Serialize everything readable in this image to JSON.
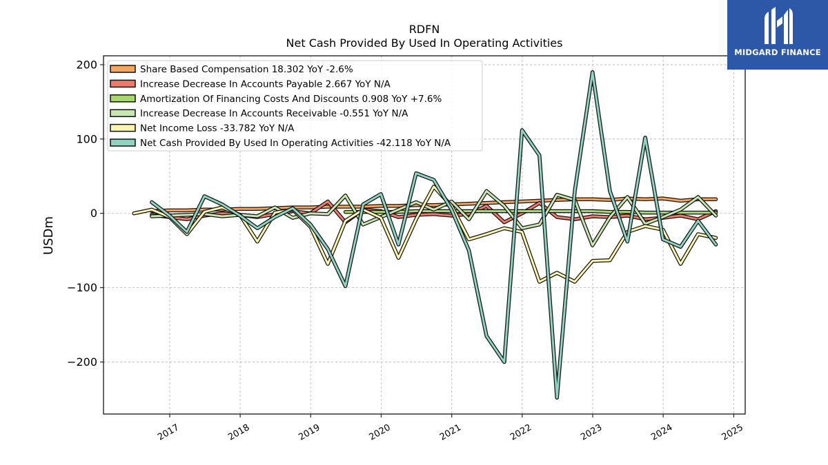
{
  "chart_data": {
    "type": "line",
    "title": "RDFN",
    "subtitle": "Net Cash Provided By Used In Operating Activities",
    "xlabel": "",
    "ylabel": "USDm",
    "xlim": [
      "2016-01-24",
      "2025-03-01"
    ],
    "ylim": [
      -270,
      212
    ],
    "x_ticks": [
      "2017",
      "2018",
      "2019",
      "2020",
      "2021",
      "2022",
      "2023",
      "2024",
      "2025"
    ],
    "y_ticks": [
      200,
      100,
      0,
      -100,
      -200
    ],
    "y_tick_labels": [
      "200",
      "100",
      "0",
      "−100",
      "−200"
    ],
    "grid": true,
    "legend_position": "top-left",
    "series": [
      {
        "name": "Share Based Compensation",
        "legend": "Share Based Compensation  18.302 YoY -2.6%",
        "color": "#f4a65e",
        "x": [
          "2016-09-30",
          "2016-12-31",
          "2017-03-31",
          "2017-06-30",
          "2017-09-30",
          "2017-12-31",
          "2018-03-31",
          "2018-06-30",
          "2018-09-30",
          "2018-12-31",
          "2019-03-31",
          "2019-06-30",
          "2019-09-30",
          "2019-12-31",
          "2020-03-31",
          "2020-06-30",
          "2020-09-30",
          "2020-12-31",
          "2021-03-31",
          "2021-06-30",
          "2021-09-30",
          "2021-12-31",
          "2022-03-31",
          "2022-06-30",
          "2022-09-30",
          "2022-12-31",
          "2023-03-31",
          "2023-06-30",
          "2023-09-30",
          "2023-12-31",
          "2024-03-31",
          "2024-06-30",
          "2024-09-30"
        ],
        "values": [
          3,
          4,
          4,
          5,
          5,
          6,
          6,
          7,
          8,
          8,
          9,
          9,
          9,
          10,
          10,
          11,
          11,
          12,
          13,
          14,
          15,
          16,
          17,
          18,
          19,
          19,
          18,
          20,
          19,
          20,
          17,
          19,
          19
        ]
      },
      {
        "name": "Increase Decrease In Accounts Payable",
        "legend": "Increase Decrease In Accounts Payable  2.667 YoY N/A",
        "color": "#f07a6a",
        "x": [
          "2016-09-30",
          "2016-12-31",
          "2017-03-31",
          "2017-06-30",
          "2017-09-30",
          "2017-12-31",
          "2018-03-31",
          "2018-06-30",
          "2018-09-30",
          "2018-12-31",
          "2019-03-31",
          "2019-06-30",
          "2019-09-30",
          "2019-12-31",
          "2020-03-31",
          "2020-06-30",
          "2020-09-30",
          "2020-12-31",
          "2021-03-31",
          "2021-06-30",
          "2021-09-30",
          "2021-12-31",
          "2022-03-31",
          "2022-06-30",
          "2022-09-30",
          "2022-12-31",
          "2023-03-31",
          "2023-06-30",
          "2023-09-30",
          "2023-12-31",
          "2024-03-31",
          "2024-06-30",
          "2024-09-30"
        ],
        "values": [
          -2,
          -5,
          -8,
          -3,
          0,
          -2,
          -5,
          -1,
          3,
          0,
          16,
          -12,
          5,
          3,
          -5,
          -2,
          -1,
          -3,
          -1,
          10,
          -12,
          0,
          14,
          -5,
          -8,
          -4,
          -5,
          -3,
          -8,
          -6,
          -3,
          -8,
          3
        ]
      },
      {
        "name": "Amortization Of Financing Costs And Discounts",
        "legend": "Amortization Of Financing Costs And Discounts  0.908 YoY +7.6%",
        "color": "#a8d86a",
        "x": [
          "2019-06-30",
          "2019-09-30",
          "2019-12-31",
          "2020-03-31",
          "2020-06-30",
          "2020-09-30",
          "2020-12-31",
          "2021-03-31",
          "2021-06-30",
          "2021-09-30",
          "2021-12-31",
          "2022-03-31",
          "2022-06-30",
          "2022-09-30",
          "2022-12-31",
          "2023-03-31",
          "2023-06-30",
          "2023-09-30",
          "2023-12-31",
          "2024-03-31",
          "2024-06-30",
          "2024-09-30"
        ],
        "values": [
          2,
          2,
          2,
          2,
          3,
          3,
          3,
          3,
          3,
          3,
          3,
          3,
          3,
          3,
          3,
          2,
          2,
          1,
          1,
          1,
          1,
          1
        ]
      },
      {
        "name": "Increase Decrease In Accounts Receivable",
        "legend": "Increase Decrease In Accounts Receivable  -0.551 YoY N/A",
        "color": "#c8e6b0",
        "x": [
          "2016-09-30",
          "2016-12-31",
          "2017-03-31",
          "2017-06-30",
          "2017-09-30",
          "2017-12-31",
          "2018-03-31",
          "2018-06-30",
          "2018-09-30",
          "2018-12-31",
          "2019-03-31",
          "2019-06-30",
          "2019-09-30",
          "2019-12-31",
          "2020-03-31",
          "2020-06-30",
          "2020-09-30",
          "2020-12-31",
          "2021-03-31",
          "2021-06-30",
          "2021-09-30",
          "2021-12-31",
          "2022-03-31",
          "2022-06-30",
          "2022-09-30",
          "2022-12-31",
          "2023-03-31",
          "2023-06-30",
          "2023-09-30",
          "2023-12-31",
          "2024-03-31",
          "2024-06-30",
          "2024-09-30"
        ],
        "values": [
          -4,
          -3,
          -2,
          -1,
          -4,
          -2,
          -4,
          8,
          -6,
          0,
          -1,
          24,
          -15,
          -5,
          5,
          15,
          5,
          16,
          -8,
          30,
          10,
          -20,
          -15,
          25,
          18,
          -43,
          -5,
          22,
          -14,
          -5,
          5,
          22,
          -3
        ]
      },
      {
        "name": "Net Income Loss",
        "legend": "Net Income Loss  -33.782 YoY N/A",
        "color": "#fdf6b0",
        "x": [
          "2016-06-30",
          "2016-09-30",
          "2016-12-31",
          "2017-03-31",
          "2017-06-30",
          "2017-09-30",
          "2017-12-31",
          "2018-03-31",
          "2018-06-30",
          "2018-09-30",
          "2018-12-31",
          "2019-03-31",
          "2019-06-30",
          "2019-09-30",
          "2019-12-31",
          "2020-03-31",
          "2020-06-30",
          "2020-09-30",
          "2020-12-31",
          "2021-03-31",
          "2021-06-30",
          "2021-09-30",
          "2021-12-31",
          "2022-03-31",
          "2022-06-30",
          "2022-09-30",
          "2022-12-31",
          "2023-03-31",
          "2023-06-30",
          "2023-09-30",
          "2023-12-31",
          "2024-03-31",
          "2024-06-30",
          "2024-09-30"
        ],
        "values": [
          0,
          5,
          -5,
          -28,
          2,
          8,
          -2,
          -38,
          1,
          5,
          -18,
          -68,
          -10,
          5,
          -6,
          -60,
          -8,
          36,
          10,
          -35,
          -28,
          -20,
          -25,
          -92,
          -80,
          -92,
          -64,
          -63,
          -25,
          -17,
          -22,
          -68,
          -28,
          -33
        ]
      },
      {
        "name": "Net Cash Provided By Used In Operating Activities",
        "legend": "Net Cash Provided By Used In Operating Activities  -42.118 YoY N/A",
        "color": "#8fd3c2",
        "x": [
          "2016-09-30",
          "2016-12-31",
          "2017-03-31",
          "2017-06-30",
          "2017-09-30",
          "2017-12-31",
          "2018-03-31",
          "2018-06-30",
          "2018-09-30",
          "2018-12-31",
          "2019-03-31",
          "2019-06-30",
          "2019-09-30",
          "2019-12-31",
          "2020-03-31",
          "2020-06-30",
          "2020-09-30",
          "2020-12-31",
          "2021-03-31",
          "2021-06-30",
          "2021-09-30",
          "2021-12-31",
          "2022-03-31",
          "2022-06-30",
          "2022-09-30",
          "2022-12-31",
          "2023-03-31",
          "2023-06-30",
          "2023-09-30",
          "2023-12-31",
          "2024-03-31",
          "2024-06-30",
          "2024-09-30"
        ],
        "values": [
          15,
          -3,
          -25,
          23,
          12,
          -3,
          -20,
          -5,
          7,
          -15,
          -48,
          -98,
          12,
          26,
          -42,
          54,
          45,
          5,
          -50,
          -165,
          -200,
          112,
          78,
          -248,
          30,
          190,
          30,
          -38,
          102,
          -35,
          -45,
          -10,
          -42
        ]
      }
    ]
  },
  "logo": {
    "text": "MIDGARD FINANCE"
  }
}
